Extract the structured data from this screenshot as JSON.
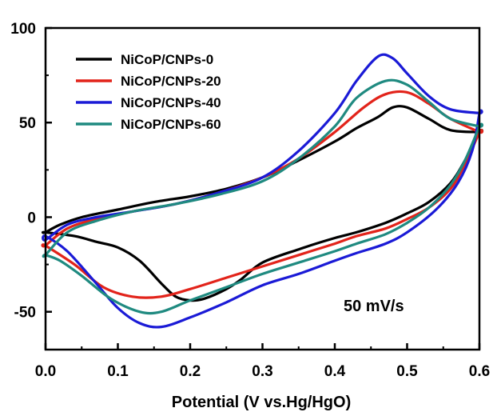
{
  "chart_data": {
    "type": "line",
    "title": "",
    "xlabel": "Potential (V vs.Hg/HgO)",
    "ylabel": "",
    "xlim": [
      0.0,
      0.6
    ],
    "ylim": [
      -70,
      100
    ],
    "x_ticks": [
      0.0,
      0.1,
      0.2,
      0.3,
      0.4,
      0.5,
      0.6
    ],
    "x_tick_labels": [
      "0.0",
      "0.1",
      "0.2",
      "0.3",
      "0.4",
      "0.5",
      "0.6"
    ],
    "y_ticks": [
      -50,
      0,
      50,
      100
    ],
    "y_tick_labels": [
      "-50",
      "0",
      "50",
      "100"
    ],
    "grid": false,
    "legend_position": "top-left",
    "annotation": "50 mV/s",
    "series": [
      {
        "name": "NiCoP/CNPs-0",
        "color": "#000000",
        "x": [
          0.0,
          0.02,
          0.05,
          0.1,
          0.15,
          0.2,
          0.25,
          0.3,
          0.35,
          0.4,
          0.43,
          0.46,
          0.48,
          0.5,
          0.53,
          0.56,
          0.6,
          0.6,
          0.58,
          0.56,
          0.53,
          0.5,
          0.47,
          0.43,
          0.4,
          0.35,
          0.3,
          0.27,
          0.25,
          0.22,
          0.2,
          0.18,
          0.16,
          0.13,
          0.1,
          0.07,
          0.04,
          0.0
        ],
        "y": [
          -8,
          -4,
          0,
          4,
          8,
          11,
          15,
          21,
          30,
          40,
          47,
          53,
          58,
          58,
          52,
          46,
          45,
          45,
          30,
          18,
          8,
          2,
          -3,
          -8,
          -11,
          -17,
          -24,
          -33,
          -38,
          -43,
          -44,
          -42,
          -35,
          -23,
          -16,
          -13,
          -10,
          -8
        ]
      },
      {
        "name": "NiCoP/CNPs-20",
        "color": "#e2231a",
        "x": [
          0.0,
          0.03,
          0.07,
          0.12,
          0.18,
          0.24,
          0.3,
          0.35,
          0.4,
          0.44,
          0.47,
          0.5,
          0.53,
          0.56,
          0.6,
          0.6,
          0.58,
          0.56,
          0.53,
          0.5,
          0.47,
          0.43,
          0.4,
          0.35,
          0.3,
          0.25,
          0.2,
          0.16,
          0.12,
          0.08,
          0.04,
          0.0
        ],
        "y": [
          -15,
          -6,
          -1,
          3,
          7,
          13,
          21,
          31,
          45,
          58,
          65,
          66,
          60,
          52,
          45,
          45,
          28,
          15,
          5,
          -1,
          -6,
          -10,
          -14,
          -20,
          -26,
          -32,
          -38,
          -42,
          -42,
          -37,
          -25,
          -15
        ]
      },
      {
        "name": "NiCoP/CNPs-40",
        "color": "#1a1ad6",
        "x": [
          0.0,
          0.03,
          0.07,
          0.12,
          0.18,
          0.24,
          0.3,
          0.35,
          0.4,
          0.43,
          0.46,
          0.48,
          0.5,
          0.53,
          0.56,
          0.6,
          0.6,
          0.59,
          0.57,
          0.54,
          0.5,
          0.47,
          0.43,
          0.4,
          0.35,
          0.3,
          0.25,
          0.2,
          0.16,
          0.13,
          0.1,
          0.07,
          0.03,
          0.0
        ],
        "y": [
          -12,
          -4,
          0,
          3,
          7,
          13,
          21,
          35,
          55,
          72,
          85,
          84,
          76,
          64,
          57,
          55,
          55,
          35,
          18,
          4,
          -8,
          -14,
          -19,
          -23,
          -30,
          -36,
          -45,
          -53,
          -58,
          -56,
          -48,
          -35,
          -18,
          -10
        ]
      },
      {
        "name": "NiCoP/CNPs-60",
        "color": "#1f8a80",
        "x": [
          0.0,
          0.03,
          0.07,
          0.12,
          0.18,
          0.24,
          0.3,
          0.35,
          0.4,
          0.43,
          0.47,
          0.5,
          0.53,
          0.56,
          0.6,
          0.6,
          0.58,
          0.56,
          0.53,
          0.5,
          0.47,
          0.43,
          0.4,
          0.35,
          0.3,
          0.25,
          0.2,
          0.16,
          0.13,
          0.09,
          0.05,
          0.02,
          0.0
        ],
        "y": [
          -20,
          -8,
          -2,
          3,
          7,
          12,
          19,
          31,
          48,
          63,
          72,
          70,
          61,
          52,
          48,
          48,
          30,
          17,
          5,
          -3,
          -9,
          -14,
          -18,
          -24,
          -30,
          -37,
          -44,
          -50,
          -50,
          -43,
          -31,
          -23,
          -20
        ]
      }
    ]
  }
}
